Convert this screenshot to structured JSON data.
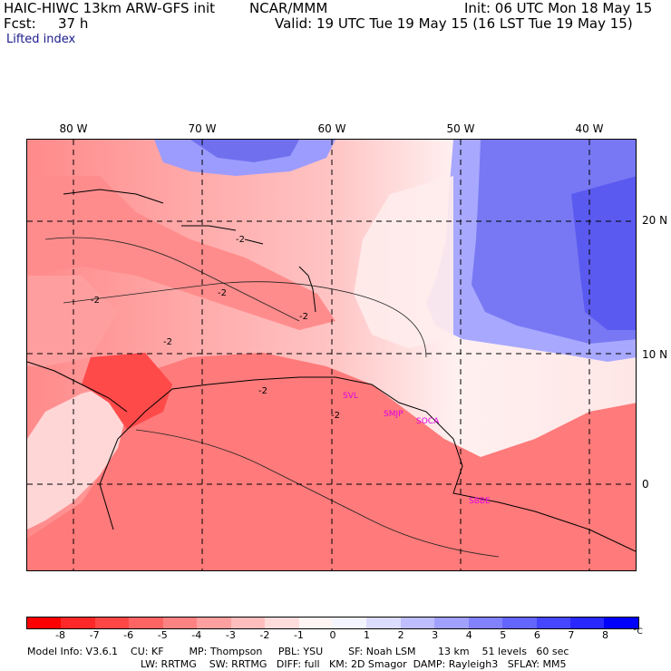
{
  "header": {
    "model_title": "HAIC-HIWC 13km ARW-GFS init",
    "institution": "NCAR/MMM",
    "init_time": "Init: 06 UTC Mon 18 May 15",
    "fcst_label": "Fcst:",
    "fcst_value": "37 h",
    "valid_time": "Valid: 19 UTC Tue 19 May 15 (16 LST Tue 19 May 15)",
    "field_name": "Lifted index"
  },
  "map": {
    "lon_labels": [
      "80 W",
      "70 W",
      "60 W",
      "50 W",
      "40 W"
    ],
    "lat_labels": [
      "20 N",
      "10 N",
      "0"
    ],
    "contour_labels": [
      "-2",
      "-2",
      "-2",
      "-2",
      "-2",
      "-2",
      "-2"
    ],
    "stations": [
      "SVL",
      "SMJP",
      "SOCA",
      "SBBE"
    ]
  },
  "colorbar": {
    "colors": [
      "#ff0000",
      "#ff2828",
      "#ff4646",
      "#ff6464",
      "#ff8282",
      "#ffa0a0",
      "#ffbebe",
      "#ffdcdc",
      "#fff4f4",
      "#f4f4ff",
      "#dcdcff",
      "#bebeff",
      "#a0a0ff",
      "#8282ff",
      "#6464ff",
      "#4646ff",
      "#2828ff",
      "#0000ff"
    ],
    "labels": [
      "-8",
      "-7",
      "-6",
      "-5",
      "-4",
      "-3",
      "-2",
      "-1",
      "0",
      "1",
      "2",
      "3",
      "4",
      "5",
      "6",
      "7",
      "8"
    ],
    "unit": "°C"
  },
  "model_info": {
    "line1": "Model Info: V3.6.1    CU: KF        MP: Thompson     PBL: YSU        SF: Noah LSM       13 km    51 levels   60 sec",
    "line2": "LW: RRTMG    SW: RRTMG   DIFF: full   KM: 2D Smagor  DAMP: Rayleigh3   SFLAY: MM5"
  }
}
